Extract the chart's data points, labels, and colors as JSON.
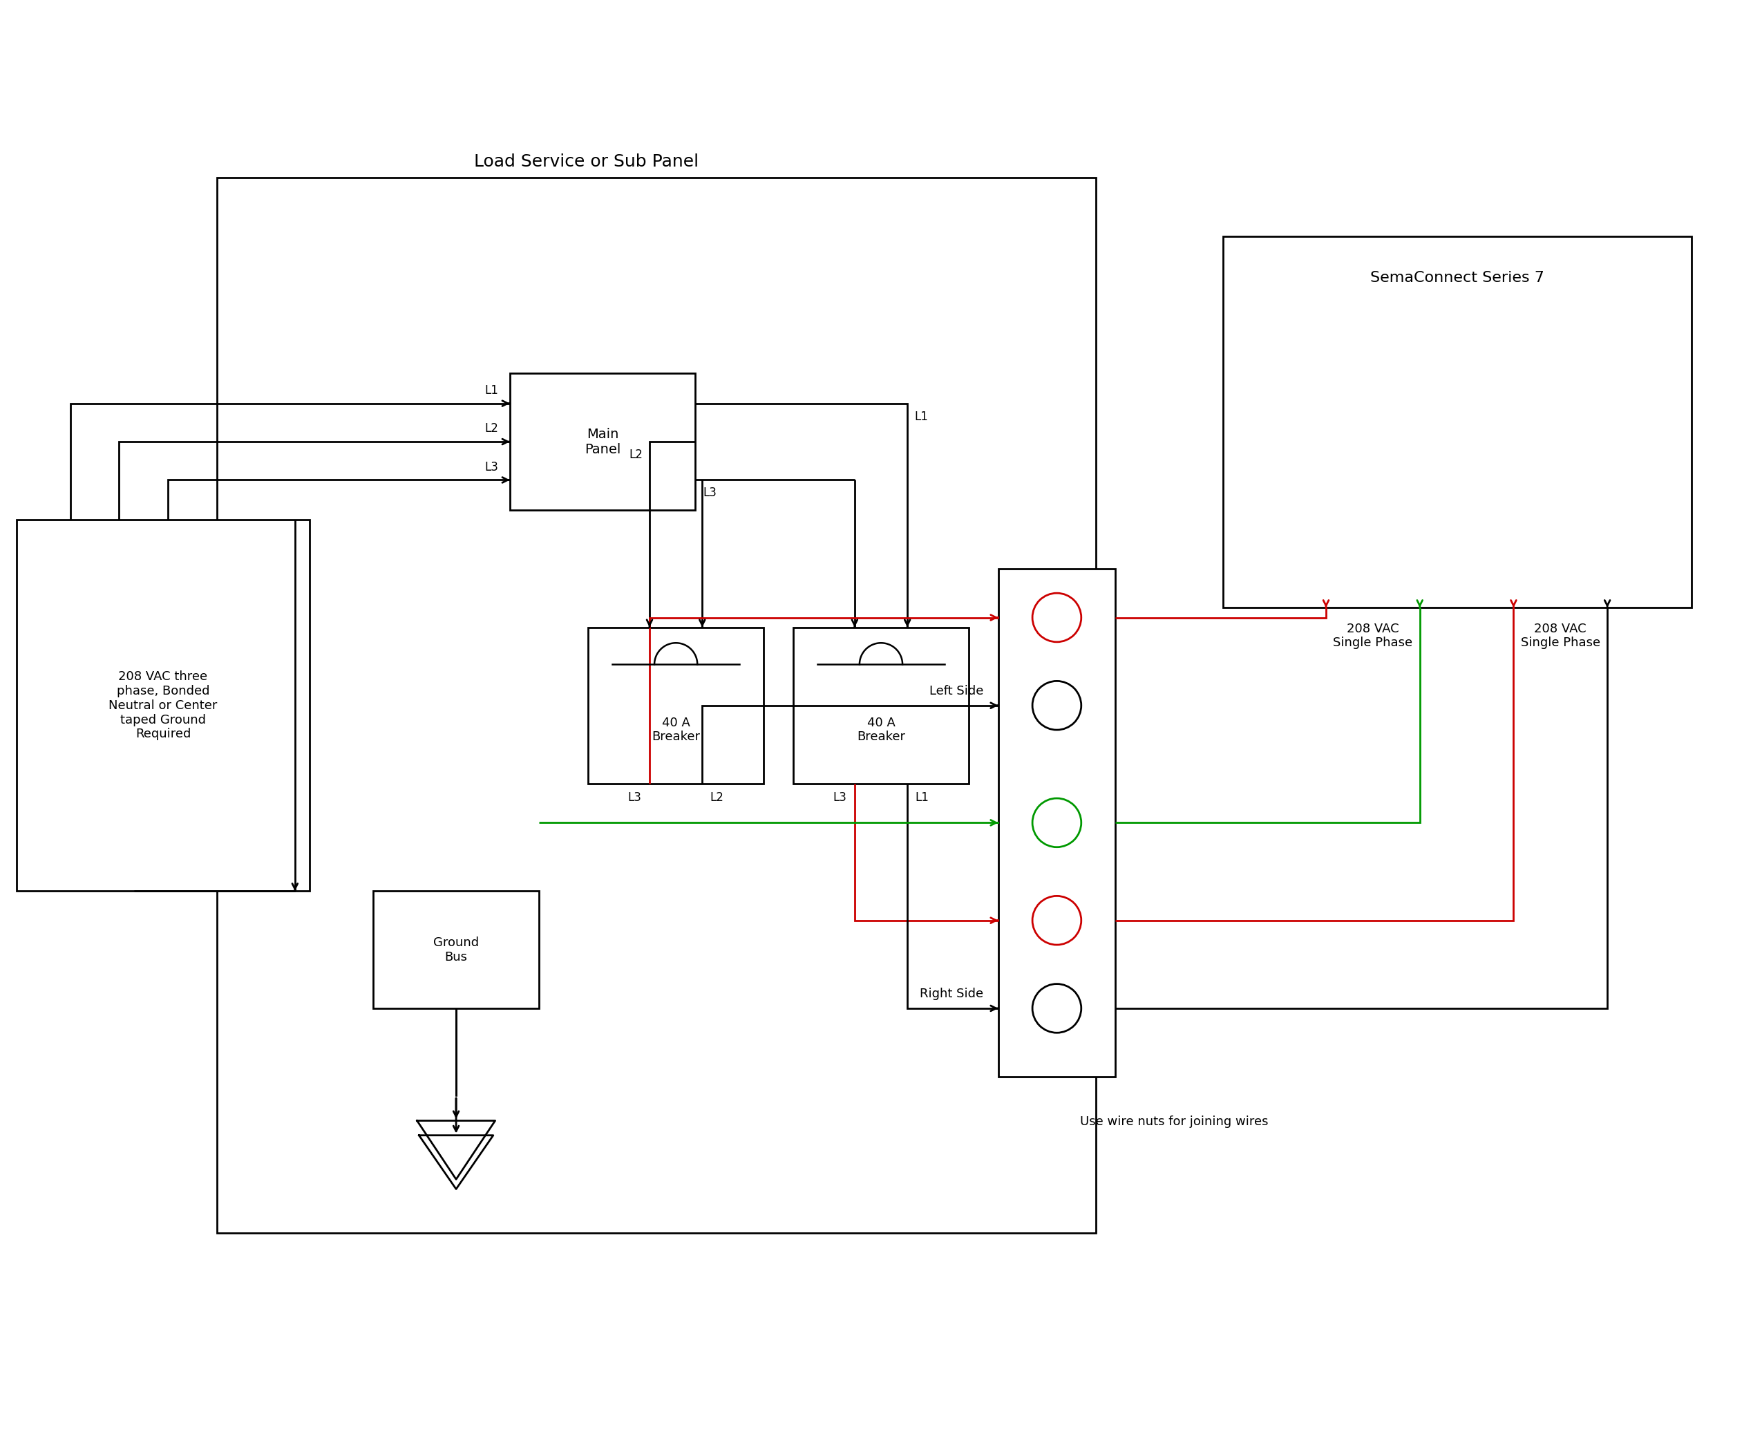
{
  "bg_color": "#ffffff",
  "line_color": "#000000",
  "red_color": "#cc0000",
  "green_color": "#009900",
  "fig_width": 25.5,
  "fig_height": 20.98,
  "load_panel_label": "Load Service or Sub Panel",
  "semaconnect_label": "SemaConnect Series 7",
  "source_label": "208 VAC three\nphase, Bonded\nNeutral or Center\ntaped Ground\nRequired",
  "main_panel_label": "Main\nPanel",
  "breaker1_label": "40 A\nBreaker",
  "breaker2_label": "40 A\nBreaker",
  "ground_bus_label": "Ground\nBus",
  "left_side_label": "Left Side",
  "right_side_label": "Right Side",
  "vac_label1": "208 VAC\nSingle Phase",
  "vac_label2": "208 VAC\nSingle Phase",
  "wire_nuts_label": "Use wire nuts for joining wires",
  "xlim": [
    0,
    18
  ],
  "ylim": [
    0,
    12
  ]
}
